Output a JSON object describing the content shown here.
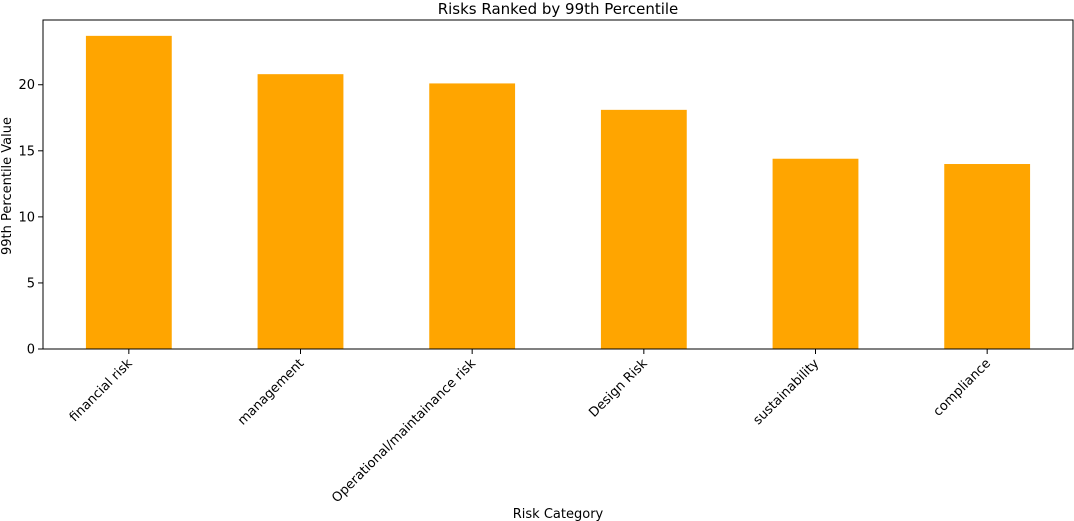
{
  "chart_data": {
    "type": "bar",
    "title": "Risks Ranked by 99th Percentile",
    "xlabel": "Risk Category",
    "ylabel": "99th Percentile Value",
    "categories": [
      "financial risk",
      "management",
      "Operational/maintainance risk",
      "Design Risk",
      "sustainability",
      "compliance"
    ],
    "values": [
      23.7,
      20.8,
      20.1,
      18.1,
      14.4,
      14.0
    ],
    "ylim": [
      0,
      24.9
    ],
    "yticks": [
      0,
      5,
      10,
      15,
      20
    ],
    "bar_color": "#ffa500",
    "grid": false,
    "legend": "none"
  }
}
